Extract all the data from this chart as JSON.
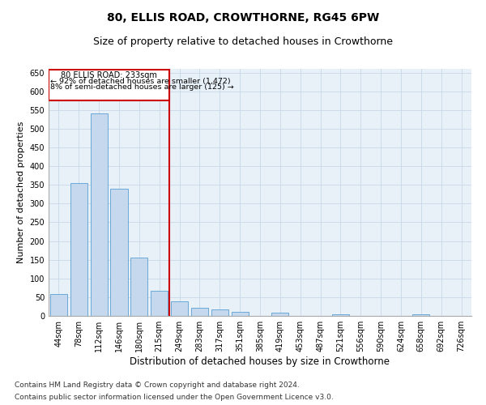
{
  "title": "80, ELLIS ROAD, CROWTHORNE, RG45 6PW",
  "subtitle": "Size of property relative to detached houses in Crowthorne",
  "xlabel": "Distribution of detached houses by size in Crowthorne",
  "ylabel": "Number of detached properties",
  "bar_color": "#c5d8ed",
  "bar_edge_color": "#5a9fd4",
  "grid_color": "#c8d8e8",
  "background_color": "#e8f0f8",
  "vline_color": "#cc0000",
  "vline_value": 6.0,
  "annotation_box_color": "#cc0000",
  "annotation_text_line1": "80 ELLIS ROAD: 233sqm",
  "annotation_text_line2": "← 92% of detached houses are smaller (1,472)",
  "annotation_text_line3": "8% of semi-detached houses are larger (125) →",
  "categories": [
    "44sqm",
    "78sqm",
    "112sqm",
    "146sqm",
    "180sqm",
    "215sqm",
    "249sqm",
    "283sqm",
    "317sqm",
    "351sqm",
    "385sqm",
    "419sqm",
    "453sqm",
    "487sqm",
    "521sqm",
    "556sqm",
    "590sqm",
    "624sqm",
    "658sqm",
    "692sqm",
    "726sqm"
  ],
  "values": [
    58,
    355,
    540,
    340,
    155,
    68,
    40,
    22,
    18,
    10,
    0,
    8,
    0,
    0,
    5,
    0,
    0,
    0,
    5,
    0,
    0
  ],
  "ylim": [
    0,
    660
  ],
  "yticks": [
    0,
    50,
    100,
    150,
    200,
    250,
    300,
    350,
    400,
    450,
    500,
    550,
    600,
    650
  ],
  "footnote_line1": "Contains HM Land Registry data © Crown copyright and database right 2024.",
  "footnote_line2": "Contains public sector information licensed under the Open Government Licence v3.0.",
  "title_fontsize": 10,
  "subtitle_fontsize": 9,
  "axis_label_fontsize": 8,
  "tick_fontsize": 7,
  "footnote_fontsize": 6.5
}
